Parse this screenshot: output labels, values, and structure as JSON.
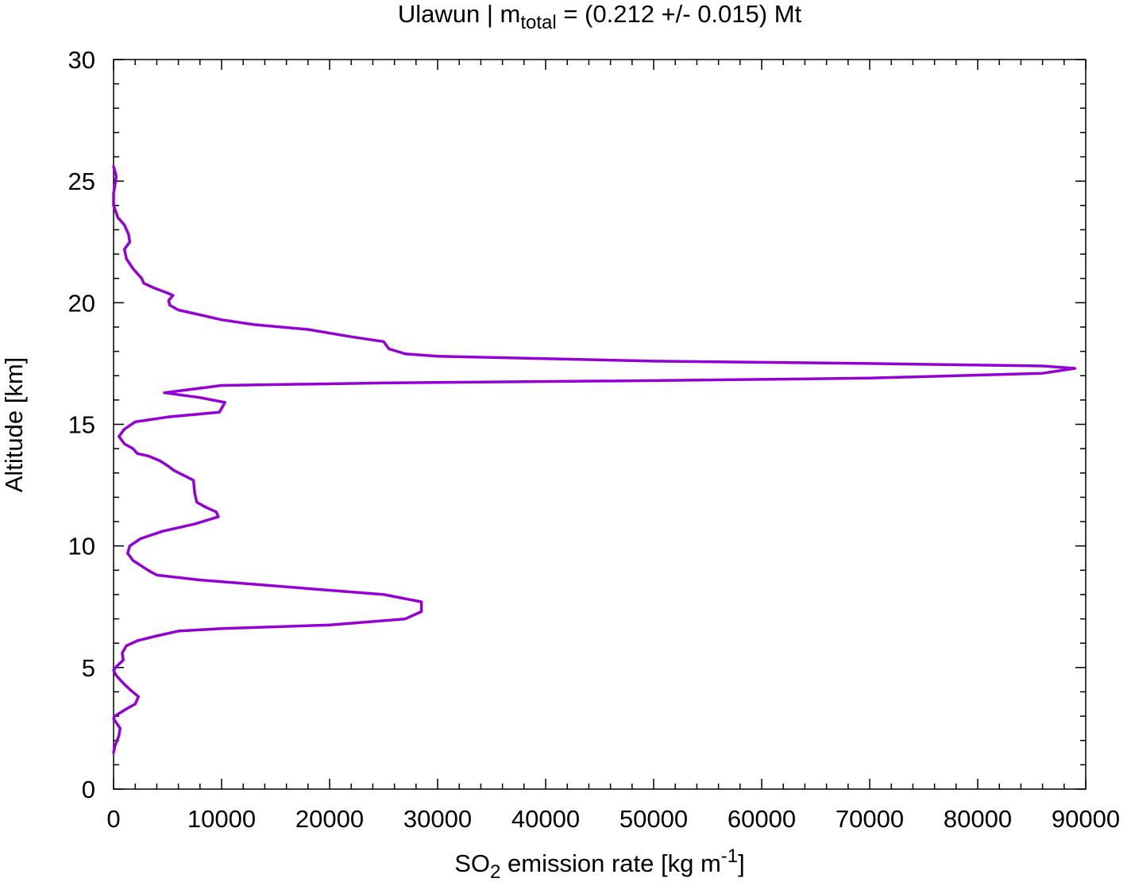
{
  "chart_data": {
    "type": "line",
    "title": {
      "prefix": "Ulawun | m",
      "subscript": "total",
      "suffix": " = (0.212 +/- 0.015) Mt"
    },
    "xlabel": {
      "prefix": "SO",
      "subscript": "2",
      "middle": " emission rate [kg m",
      "superscript": "-1",
      "suffix": "]"
    },
    "ylabel": "Altitude [km]",
    "xlim": [
      0,
      90000
    ],
    "ylim": [
      0,
      30
    ],
    "x_ticks": [
      0,
      10000,
      20000,
      30000,
      40000,
      50000,
      60000,
      70000,
      80000,
      90000
    ],
    "x_tick_labels": [
      "0",
      "10000",
      "20000",
      "30000",
      "40000",
      "50000",
      "60000",
      "70000",
      "80000",
      "90000"
    ],
    "y_ticks": [
      0,
      5,
      10,
      15,
      20,
      25,
      30
    ],
    "y_tick_labels": [
      "0",
      "5",
      "10",
      "15",
      "20",
      "25",
      "30"
    ],
    "grid": false,
    "series": [
      {
        "color": "#9400d3",
        "x": [
          0,
          150,
          500,
          600,
          300,
          0,
          100,
          1200,
          2000,
          2300,
          1500,
          800,
          200,
          0,
          400,
          900,
          800,
          1200,
          2200,
          4000,
          6000,
          10000,
          20000,
          27000,
          27500,
          28500,
          28500,
          25000,
          8000,
          4000,
          3200,
          2500,
          1800,
          1300,
          1500,
          2500,
          4500,
          7500,
          9700,
          9500,
          8500,
          7700,
          7500,
          7400,
          6500,
          5600,
          5000,
          4300,
          3200,
          2200,
          1800,
          1000,
          500,
          1000,
          2000,
          5000,
          9800,
          10300,
          8000,
          4700,
          6500,
          10000,
          25000,
          50000,
          70000,
          86000,
          89000,
          86000,
          70000,
          50000,
          30000,
          27000,
          25500,
          25000,
          22000,
          18000,
          13000,
          10000,
          8000,
          6000,
          5200,
          5100,
          5500,
          5000,
          3800,
          2800,
          2600,
          2200,
          1800,
          1200,
          1000,
          1500,
          1400,
          1000,
          400,
          0,
          0,
          150,
          250,
          0
        ],
        "y": [
          1.5,
          1.8,
          2.2,
          2.5,
          2.7,
          2.9,
          3.0,
          3.3,
          3.5,
          3.8,
          4.1,
          4.4,
          4.7,
          4.9,
          5.1,
          5.3,
          5.6,
          5.9,
          6.1,
          6.3,
          6.5,
          6.6,
          6.75,
          7.0,
          7.1,
          7.3,
          7.7,
          8.0,
          8.6,
          8.8,
          9.0,
          9.2,
          9.4,
          9.7,
          10.0,
          10.3,
          10.6,
          10.9,
          11.2,
          11.4,
          11.6,
          11.8,
          12.2,
          12.7,
          12.9,
          13.1,
          13.3,
          13.5,
          13.7,
          13.8,
          14.0,
          14.2,
          14.5,
          14.8,
          15.1,
          15.3,
          15.5,
          15.9,
          16.1,
          16.3,
          16.4,
          16.6,
          16.7,
          16.8,
          16.9,
          17.1,
          17.3,
          17.4,
          17.5,
          17.6,
          17.8,
          17.9,
          18.1,
          18.4,
          18.6,
          18.9,
          19.1,
          19.3,
          19.5,
          19.7,
          19.9,
          20.1,
          20.3,
          20.4,
          20.6,
          20.8,
          21.0,
          21.2,
          21.4,
          21.8,
          22.2,
          22.5,
          22.8,
          23.2,
          23.5,
          24.0,
          24.5,
          24.9,
          25.2,
          25.6
        ]
      }
    ]
  }
}
